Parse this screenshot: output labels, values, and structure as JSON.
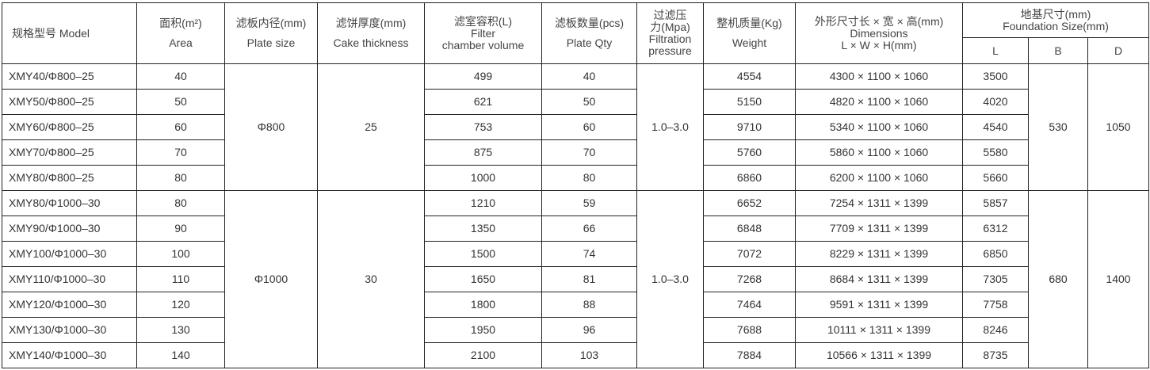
{
  "headers": {
    "model": "规格型号  Model",
    "area_cn": "面积(m²)",
    "area_en": "Area",
    "plate_cn": "滤板内径(mm)",
    "plate_en": "Plate size",
    "cake_cn": "滤饼厚度(mm)",
    "cake_en": "Cake thickness",
    "vol_cn": "滤室容积(L)",
    "vol_en1": "Filter",
    "vol_en2": "chamber volume",
    "qty_cn": "滤板数量(pcs)",
    "qty_en": "Plate Qty",
    "press_cn1": "过滤压",
    "press_cn2": "力(Mpa)",
    "press_en1": "Filtration",
    "press_en2": "pressure",
    "weight_cn": "整机质量(Kg)",
    "weight_en": "Weight",
    "dim_cn": "外形尺寸长 × 宽 × 高(mm)",
    "dim_en1": "Dimensions",
    "dim_en2": "L × W × H(mm)",
    "found_cn": "地基尺寸(mm)",
    "found_en": "Foundation Size(mm)",
    "L": "L",
    "B": "B",
    "D": "D"
  },
  "groups": [
    {
      "plate": "Φ800",
      "cake": "25",
      "pressure": "1.0–3.0",
      "B": "530",
      "D": "1050"
    },
    {
      "plate": "Φ1000",
      "cake": "30",
      "pressure": "1.0–3.0",
      "B": "680",
      "D": "1400"
    }
  ],
  "rows": [
    {
      "model": "XMY40/Φ800–25",
      "area": "40",
      "volume": "499",
      "qty": "40",
      "weight": "4554",
      "dims": "4300 × 1100 × 1060",
      "L": "3500"
    },
    {
      "model": "XMY50/Φ800–25",
      "area": "50",
      "volume": "621",
      "qty": "50",
      "weight": "5150",
      "dims": "4820 × 1100 × 1060",
      "L": "4020"
    },
    {
      "model": "XMY60/Φ800–25",
      "area": "60",
      "volume": "753",
      "qty": "60",
      "weight": "9710",
      "dims": "5340 × 1100 × 1060",
      "L": "4540"
    },
    {
      "model": "XMY70/Φ800–25",
      "area": "70",
      "volume": "875",
      "qty": "70",
      "weight": "5760",
      "dims": "5860 × 1100 × 1060",
      "L": "5580"
    },
    {
      "model": "XMY80/Φ800–25",
      "area": "80",
      "volume": "1000",
      "qty": "80",
      "weight": "6860",
      "dims": "6200 × 1100 × 1060",
      "L": "5660"
    },
    {
      "model": "XMY80/Φ1000–30",
      "area": "80",
      "volume": "1210",
      "qty": "59",
      "weight": "6652",
      "dims": "7254 × 1311 × 1399",
      "L": "5857"
    },
    {
      "model": "XMY90/Φ1000–30",
      "area": "90",
      "volume": "1350",
      "qty": "66",
      "weight": "6848",
      "dims": "7709 × 1311 × 1399",
      "L": "6312"
    },
    {
      "model": "XMY100/Φ1000–30",
      "area": "100",
      "volume": "1500",
      "qty": "74",
      "weight": "7072",
      "dims": "8229 × 1311 × 1399",
      "L": "6850"
    },
    {
      "model": "XMY110/Φ1000–30",
      "area": "110",
      "volume": "1650",
      "qty": "81",
      "weight": "7268",
      "dims": "8684 × 1311 × 1399",
      "L": "7305"
    },
    {
      "model": "XMY120/Φ1000–30",
      "area": "120",
      "volume": "1800",
      "qty": "88",
      "weight": "7464",
      "dims": "9591 × 1311 × 1399",
      "L": "7758"
    },
    {
      "model": "XMY130/Φ1000–30",
      "area": "130",
      "volume": "1950",
      "qty": "96",
      "weight": "7688",
      "dims": "10111 × 1311 × 1399",
      "L": "8246"
    },
    {
      "model": "XMY140/Φ1000–30",
      "area": "140",
      "volume": "2100",
      "qty": "103",
      "weight": "7884",
      "dims": "10566 × 1311 × 1399",
      "L": "8735"
    }
  ]
}
